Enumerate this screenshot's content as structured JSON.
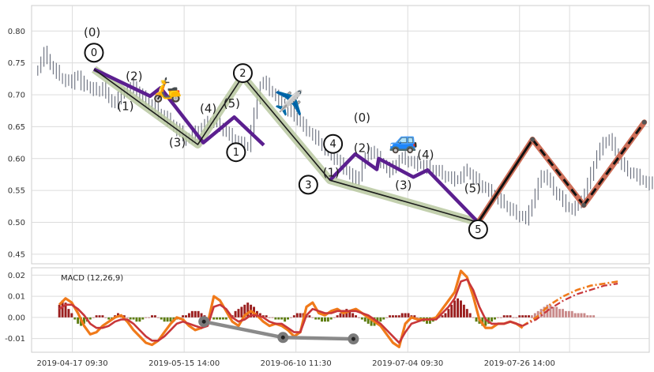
{
  "chart_data": [
    {
      "type": "line",
      "title": "",
      "xlabel": "",
      "ylabel": "",
      "ylim": [
        0.435,
        0.84
      ],
      "yticks": [
        0.45,
        0.5,
        0.55,
        0.6,
        0.65,
        0.7,
        0.75,
        0.8
      ],
      "ytick_labels": [
        "0.45",
        "0.50",
        "0.55",
        "0.60",
        "0.65",
        "0.70",
        "0.75",
        "0.80"
      ],
      "xlim": [
        0,
        100
      ],
      "grid": true,
      "price_bars": {
        "x_start": 1,
        "x_step": 0.5,
        "close": [
          0.74,
          0.752,
          0.765,
          0.758,
          0.745,
          0.74,
          0.735,
          0.728,
          0.725,
          0.722,
          0.72,
          0.718,
          0.73,
          0.728,
          0.715,
          0.718,
          0.713,
          0.71,
          0.708,
          0.705,
          0.708,
          0.712,
          0.7,
          0.695,
          0.69,
          0.685,
          0.695,
          0.7,
          0.705,
          0.71,
          0.708,
          0.715,
          0.705,
          0.7,
          0.695,
          0.69,
          0.685,
          0.68,
          0.678,
          0.672,
          0.668,
          0.665,
          0.66,
          0.655,
          0.65,
          0.645,
          0.64,
          0.635,
          0.63,
          0.632,
          0.636,
          0.64,
          0.645,
          0.648,
          0.652,
          0.655,
          0.658,
          0.66,
          0.655,
          0.65,
          0.645,
          0.64,
          0.636,
          0.632,
          0.628,
          0.625,
          0.622,
          0.62,
          0.62,
          0.645,
          0.67,
          0.695,
          0.715,
          0.72,
          0.715,
          0.708,
          0.702,
          0.698,
          0.692,
          0.688,
          0.682,
          0.676,
          0.671,
          0.666,
          0.662,
          0.656,
          0.65,
          0.645,
          0.64,
          0.636,
          0.632,
          0.626,
          0.62,
          0.615,
          0.61,
          0.605,
          0.6,
          0.596,
          0.59,
          0.585,
          0.58,
          0.575,
          0.57,
          0.566,
          0.574,
          0.59,
          0.6,
          0.608,
          0.612,
          0.606,
          0.6,
          0.595,
          0.59,
          0.585,
          0.58,
          0.585,
          0.592,
          0.598,
          0.6,
          0.598,
          0.596,
          0.594,
          0.592,
          0.59,
          0.59,
          0.588,
          0.586,
          0.584,
          0.582,
          0.58,
          0.578,
          0.575,
          0.572,
          0.57,
          0.568,
          0.566,
          0.568,
          0.572,
          0.578,
          0.58,
          0.575,
          0.57,
          0.565,
          0.56,
          0.556,
          0.552,
          0.548,
          0.545,
          0.54,
          0.536,
          0.532,
          0.528,
          0.524,
          0.52,
          0.516,
          0.512,
          0.51,
          0.508,
          0.505,
          0.515,
          0.53,
          0.545,
          0.56,
          0.57,
          0.575,
          0.568,
          0.56,
          0.55,
          0.545,
          0.54,
          0.532,
          0.526,
          0.522,
          0.52,
          0.524,
          0.53,
          0.536,
          0.545,
          0.56,
          0.575,
          0.59,
          0.605,
          0.615,
          0.622,
          0.628,
          0.63,
          0.622,
          0.61,
          0.6,
          0.592,
          0.585,
          0.58,
          0.578,
          0.575,
          0.572,
          0.568,
          0.565,
          0.562,
          0.56,
          0.558,
          0.562,
          0.566,
          0.568,
          0.565,
          0.56,
          0.556,
          0.552,
          0.548,
          0.545,
          0.548,
          0.552,
          0.555,
          0.55,
          0.545,
          0.542,
          0.54
        ]
      },
      "zigzag_main": {
        "points": [
          [
            10.1,
            0.74
          ],
          [
            26.9,
            0.622
          ],
          [
            34.2,
            0.729
          ],
          [
            48.3,
            0.566
          ],
          [
            72.3,
            0.5
          ]
        ],
        "labels": [
          "0",
          "1",
          "2",
          "3",
          "5"
        ]
      },
      "zigzag_sub": {
        "points": [
          [
            10.1,
            0.74
          ],
          [
            19.2,
            0.698
          ],
          [
            20.9,
            0.711
          ],
          [
            27.8,
            0.625
          ],
          [
            32.8,
            0.665
          ],
          [
            37.6,
            0.621
          ]
        ]
      },
      "zigzag_sub2": {
        "points": [
          [
            48.3,
            0.566
          ],
          [
            52.4,
            0.607
          ],
          [
            55.9,
            0.583
          ],
          [
            56.2,
            0.6
          ],
          [
            61.8,
            0.571
          ],
          [
            64.1,
            0.582
          ],
          [
            72.3,
            0.5
          ]
        ]
      },
      "wave_labels_main": [
        {
          "text": "(0)",
          "x": 9.8,
          "y": 0.792
        },
        {
          "text": "(2)",
          "x": 16.6,
          "y": 0.723
        },
        {
          "text": "(1)",
          "x": 15.2,
          "y": 0.676
        },
        {
          "text": "(3)",
          "x": 23.6,
          "y": 0.619
        },
        {
          "text": "(4)",
          "x": 28.6,
          "y": 0.672
        },
        {
          "text": "(5)",
          "x": 32.4,
          "y": 0.68
        }
      ],
      "wave_labels_sub": [
        {
          "text": "(0)",
          "x": 53.5,
          "y": 0.658
        },
        {
          "text": "(2)",
          "x": 53.5,
          "y": 0.61
        },
        {
          "text": "(1)",
          "x": 48.5,
          "y": 0.572
        },
        {
          "text": "(4)",
          "x": 63.8,
          "y": 0.6
        },
        {
          "text": "(3)",
          "x": 60.2,
          "y": 0.552
        },
        {
          "text": "(5)",
          "x": 71.4,
          "y": 0.547
        }
      ],
      "nodes": [
        {
          "label": "0",
          "x": 10.1,
          "y": 0.766
        },
        {
          "label": "2",
          "x": 34.2,
          "y": 0.734
        },
        {
          "label": "1",
          "x": 33.1,
          "y": 0.61
        },
        {
          "label": "4",
          "x": 48.8,
          "y": 0.623
        },
        {
          "label": "3",
          "x": 44.8,
          "y": 0.559
        },
        {
          "label": "5",
          "x": 72.3,
          "y": 0.489
        }
      ],
      "forecast": {
        "up": [
          [
            72.3,
            0.5
          ],
          [
            81.1,
            0.63
          ]
        ],
        "down": [
          [
            81.1,
            0.63
          ],
          [
            89.4,
            0.527
          ]
        ],
        "up2": [
          [
            89.4,
            0.527
          ],
          [
            99.2,
            0.657
          ]
        ],
        "colors": {
          "outer": "#cd6e58",
          "inner_solid": "#111111",
          "inner_dash": "#111111"
        }
      },
      "icons": [
        {
          "name": "scooter",
          "glyph": "🛵",
          "x": 22.0,
          "y": 0.708
        },
        {
          "name": "airplane",
          "glyph": "✈️",
          "x": 41.7,
          "y": 0.687
        },
        {
          "name": "car",
          "glyph": "🚙",
          "x": 60.2,
          "y": 0.628
        }
      ],
      "colors": {
        "bars": "#5a6070",
        "main": "#1c1c1c",
        "main_band": "#b8c8a0",
        "sub": "#5b1f8f"
      }
    },
    {
      "type": "bar",
      "title": "MACD (12,26,9)",
      "ylim": [
        -0.0165,
        0.0235
      ],
      "yticks": [
        -0.01,
        0.0,
        0.01,
        0.02
      ],
      "ytick_labels": [
        "-0.01",
        "0.00",
        "0.01",
        "0.02"
      ],
      "xlim": [
        0,
        100
      ],
      "grid": true,
      "x_labels": [
        {
          "text": "2019-04-17 09:30",
          "x": 6.6
        },
        {
          "text": "2019-05-15 14:00",
          "x": 24.7
        },
        {
          "text": "2019-06-10 11:30",
          "x": 42.8
        },
        {
          "text": "2019-07-04 09:30",
          "x": 60.9
        },
        {
          "text": "2019-07-26 14:00",
          "x": 79.0
        }
      ],
      "macd": {
        "x_start": 4.5,
        "x_step": 1.0,
        "values": [
          0.006,
          0.009,
          0.007,
          0.002,
          -0.004,
          -0.008,
          -0.007,
          -0.004,
          -0.002,
          0.0,
          0.001,
          -0.002,
          -0.006,
          -0.009,
          -0.012,
          -0.013,
          -0.011,
          -0.007,
          -0.003,
          0.0,
          -0.001,
          -0.004,
          -0.006,
          -0.005,
          -0.003,
          0.01,
          0.008,
          0.003,
          -0.002,
          -0.004,
          0.001,
          0.003,
          0.001,
          -0.002,
          -0.004,
          -0.003,
          -0.004,
          -0.006,
          -0.009,
          -0.007,
          0.005,
          0.007,
          0.002,
          0.001,
          0.003,
          0.004,
          0.002,
          0.003,
          0.004,
          0.002,
          0.0,
          -0.002,
          -0.004,
          -0.008,
          -0.012,
          -0.014,
          -0.003,
          0.0,
          -0.001,
          -0.001,
          -0.001,
          0.0,
          0.004,
          0.008,
          0.012,
          0.022,
          0.019,
          0.01,
          -0.001,
          -0.005,
          -0.005,
          -0.003,
          -0.003,
          -0.002,
          -0.003,
          -0.005
        ],
        "forecast": [
          -0.004,
          0.0,
          0.006,
          0.01,
          0.013,
          0.015,
          0.016,
          0.017
        ]
      },
      "signal": {
        "x_start": 4.5,
        "x_step": 1.0,
        "values": [
          0.004,
          0.006,
          0.006,
          0.004,
          0.001,
          -0.003,
          -0.005,
          -0.005,
          -0.004,
          -0.002,
          -0.001,
          -0.001,
          -0.003,
          -0.006,
          -0.009,
          -0.011,
          -0.011,
          -0.009,
          -0.006,
          -0.003,
          -0.002,
          -0.003,
          -0.004,
          -0.005,
          -0.004,
          0.005,
          0.006,
          0.004,
          0.0,
          -0.002,
          -0.001,
          0.001,
          0.001,
          0.0,
          -0.002,
          -0.003,
          -0.003,
          -0.005,
          -0.007,
          -0.007,
          0.001,
          0.004,
          0.003,
          0.002,
          0.002,
          0.003,
          0.003,
          0.003,
          0.003,
          0.002,
          0.001,
          -0.001,
          -0.003,
          -0.006,
          -0.009,
          -0.012,
          -0.007,
          -0.003,
          -0.002,
          -0.001,
          -0.001,
          -0.001,
          0.002,
          0.005,
          0.009,
          0.017,
          0.018,
          0.013,
          0.005,
          -0.001,
          -0.003,
          -0.003,
          -0.003,
          -0.002,
          -0.003,
          -0.004
        ],
        "forecast": [
          -0.004,
          -0.001,
          0.004,
          0.008,
          0.011,
          0.013,
          0.015,
          0.016
        ]
      },
      "histogram": {
        "x_start": 4.5,
        "x_step": 0.5,
        "pos_color": "#9a1e1e",
        "neg_color": "#5d7d11",
        "forecast_color": "#c98a8a",
        "values": [
          0.006,
          0.008,
          0.007,
          0.004,
          0.002,
          -0.001,
          -0.003,
          -0.004,
          -0.003,
          -0.002,
          -0.001,
          0.0,
          0.001,
          0.001,
          0.001,
          0.0,
          -0.001,
          -0.001,
          0.001,
          0.002,
          0.001,
          0.001,
          0.0,
          -0.001,
          -0.001,
          -0.002,
          -0.002,
          -0.001,
          0.0,
          0.0,
          0.001,
          0.001,
          0.0,
          -0.001,
          -0.002,
          -0.002,
          -0.002,
          -0.002,
          -0.001,
          -0.001,
          0.001,
          0.001,
          0.002,
          0.003,
          0.003,
          0.003,
          0.002,
          0.001,
          0.0,
          0.0,
          -0.001,
          -0.001,
          -0.001,
          -0.001,
          -0.001,
          0.0,
          0.001,
          0.003,
          0.004,
          0.005,
          0.006,
          0.007,
          0.006,
          0.005,
          0.003,
          0.002,
          0.001,
          0.001,
          0.0,
          0.0,
          -0.001,
          -0.001,
          -0.001,
          -0.002,
          -0.001,
          0.0,
          0.001,
          0.002,
          0.002,
          0.002,
          0.001,
          0.001,
          0.0,
          -0.001,
          -0.001,
          -0.002,
          -0.002,
          -0.002,
          -0.001,
          0.0,
          0.001,
          0.002,
          0.003,
          0.004,
          0.003,
          0.002,
          0.001,
          0.0,
          -0.001,
          -0.002,
          -0.003,
          -0.004,
          -0.004,
          -0.003,
          -0.002,
          -0.001,
          0.0,
          0.001,
          0.001,
          0.001,
          0.001,
          0.002,
          0.002,
          0.002,
          0.001,
          0.001,
          0.0,
          -0.001,
          -0.002,
          -0.003,
          -0.003,
          -0.002,
          -0.001,
          0.0,
          0.001,
          0.002,
          0.004,
          0.006,
          0.008,
          0.009,
          0.008,
          0.006,
          0.004,
          0.002,
          0.0,
          -0.002,
          -0.003,
          -0.004,
          -0.004,
          -0.003,
          -0.002,
          -0.001,
          0.0,
          0.0,
          0.001,
          0.001,
          0.001,
          0.0,
          0.0,
          0.001,
          0.001,
          0.001,
          0.001,
          0.0,
          0.0
        ]
      },
      "forecast_hist": {
        "x_start": 81.0,
        "x_step": 0.5,
        "values": [
          0.001,
          0.002,
          0.003,
          0.004,
          0.005,
          0.006,
          0.006,
          0.005,
          0.005,
          0.004,
          0.004,
          0.003,
          0.003,
          0.003,
          0.002,
          0.002,
          0.002,
          0.002,
          0.001,
          0.001,
          0.001
        ]
      },
      "swing_line": {
        "points": [
          [
            27.9,
            -0.002
          ],
          [
            40.7,
            -0.0095
          ],
          [
            52.1,
            -0.0102
          ]
        ]
      },
      "colors": {
        "macd": "#f07a1a",
        "signal": "#c8373a",
        "swing": "#8a8a8a"
      }
    }
  ]
}
